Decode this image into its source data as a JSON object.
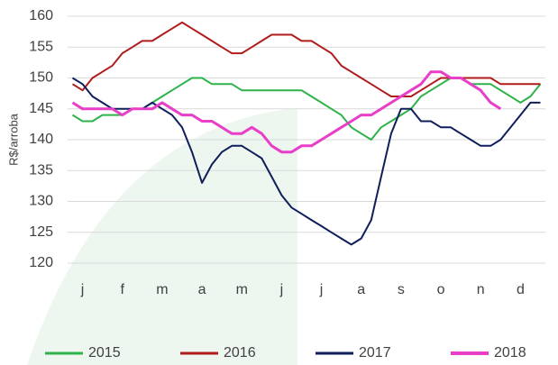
{
  "chart_data": {
    "type": "line",
    "y_label": "R$/arroba",
    "categories": [
      null,
      "j",
      null,
      null,
      null,
      "f",
      null,
      null,
      null,
      "m",
      null,
      null,
      null,
      "a",
      null,
      null,
      null,
      "m",
      null,
      null,
      null,
      "j",
      null,
      null,
      null,
      "j",
      null,
      null,
      null,
      "a",
      null,
      null,
      null,
      "s",
      null,
      null,
      null,
      "o",
      null,
      null,
      null,
      "n",
      null,
      null,
      null,
      "d",
      null,
      null
    ],
    "series": [
      {
        "name": "2015",
        "color": "#2db34a",
        "width": 2,
        "values": [
          144,
          143,
          143,
          144,
          144,
          144,
          145,
          145,
          146,
          147,
          148,
          149,
          150,
          150,
          149,
          149,
          149,
          148,
          148,
          148,
          148,
          148,
          148,
          148,
          147,
          146,
          145,
          144,
          142,
          141,
          140,
          142,
          143,
          144,
          145,
          147,
          148,
          149,
          150,
          150,
          149,
          149,
          149,
          148,
          147,
          146,
          147,
          149
        ]
      },
      {
        "name": "2016",
        "color": "#b01c1c",
        "width": 2,
        "values": [
          149,
          148,
          150,
          151,
          152,
          154,
          155,
          156,
          156,
          157,
          158,
          159,
          158,
          157,
          156,
          155,
          154,
          154,
          155,
          156,
          157,
          157,
          157,
          156,
          156,
          155,
          154,
          152,
          151,
          150,
          149,
          148,
          147,
          147,
          147,
          148,
          149,
          150,
          150,
          150,
          150,
          150,
          150,
          149,
          149,
          149,
          149,
          149
        ]
      },
      {
        "name": "2017",
        "color": "#0e1f5b",
        "width": 2,
        "values": [
          150,
          149,
          147,
          146,
          145,
          145,
          145,
          145,
          146,
          145,
          144,
          142,
          138,
          133,
          136,
          138,
          139,
          139,
          138,
          137,
          134,
          131,
          129,
          128,
          127,
          126,
          125,
          124,
          123,
          124,
          127,
          134,
          141,
          145,
          145,
          143,
          143,
          142,
          142,
          141,
          140,
          139,
          139,
          140,
          142,
          144,
          146,
          146
        ]
      },
      {
        "name": "2018",
        "color": "#e83ec8",
        "width": 3,
        "values": [
          146,
          145,
          145,
          145,
          145,
          144,
          145,
          145,
          145,
          146,
          145,
          144,
          144,
          143,
          143,
          142,
          141,
          141,
          142,
          141,
          139,
          138,
          138,
          139,
          139,
          140,
          141,
          142,
          143,
          144,
          144,
          145,
          146,
          147,
          148,
          149,
          151,
          151,
          150,
          150,
          149,
          148,
          146,
          145,
          null,
          null,
          null,
          null
        ]
      }
    ],
    "ylim": [
      120,
      160
    ],
    "yticks": [
      120,
      125,
      130,
      135,
      140,
      145,
      150,
      155,
      160
    ],
    "grid": true,
    "legend": "bottom"
  }
}
